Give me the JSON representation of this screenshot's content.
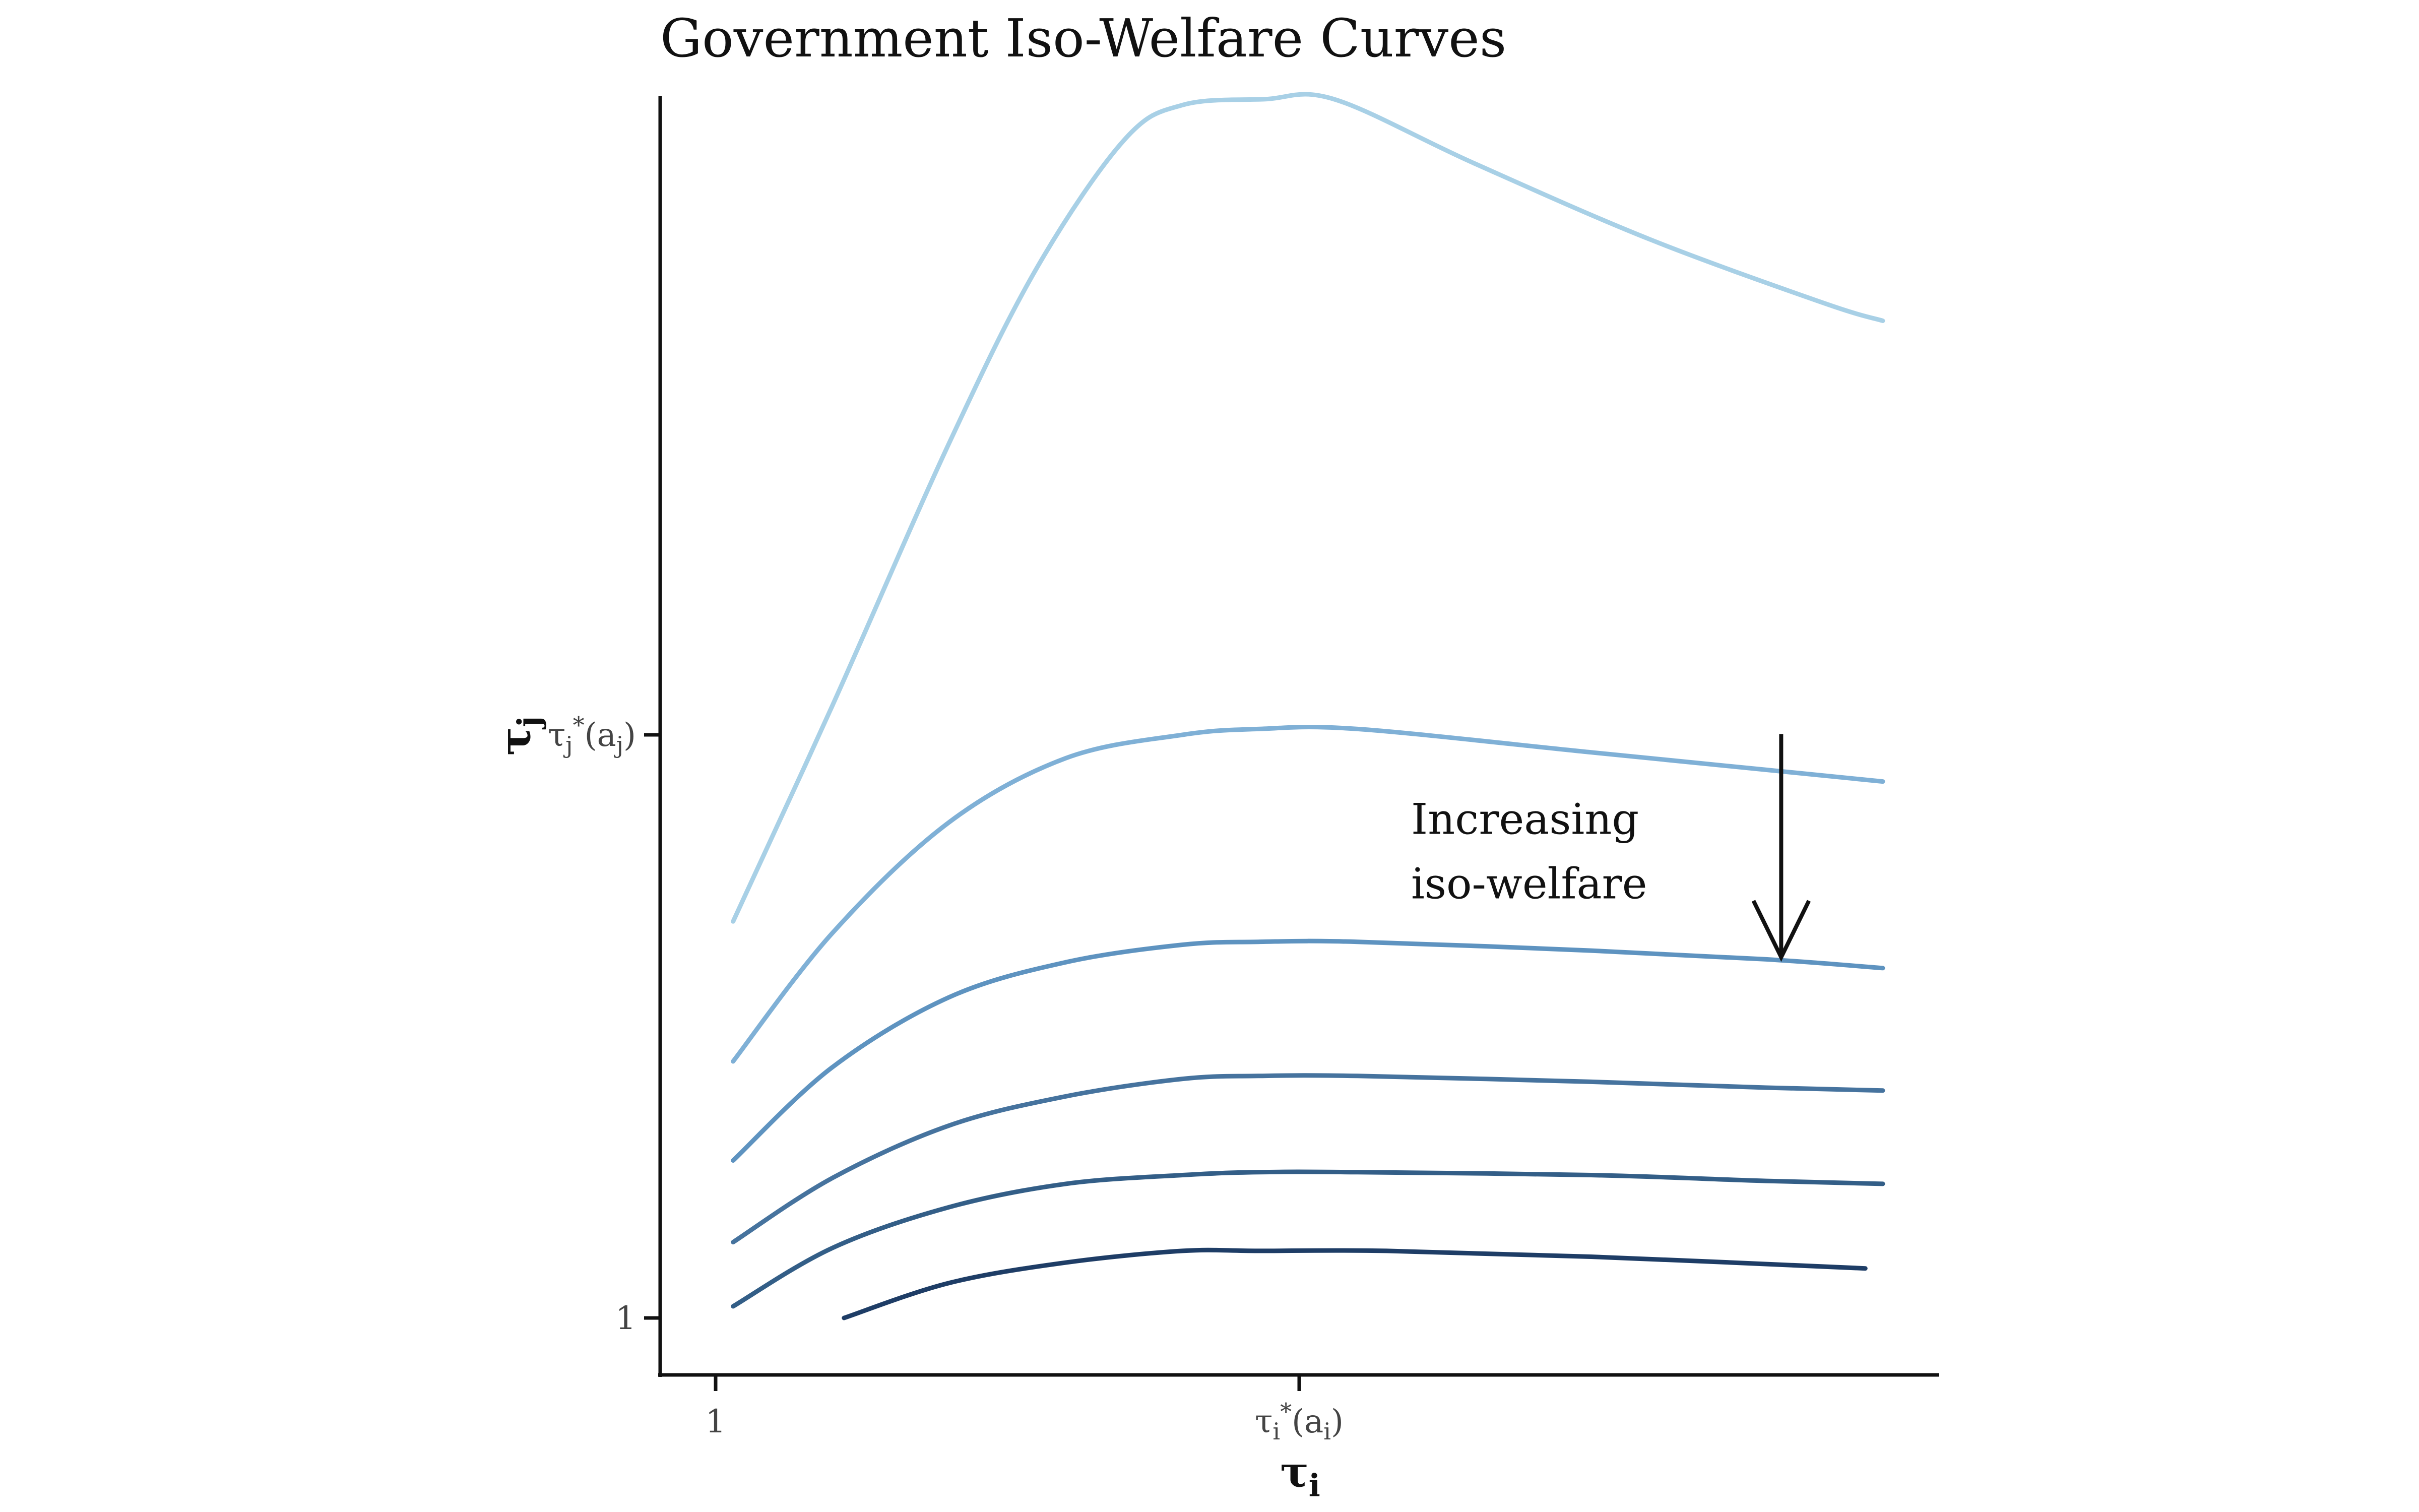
{
  "chart_data": {
    "type": "line",
    "title": "Government Iso-Welfare Curves",
    "xlabel": "τi",
    "ylabel": "τj",
    "xlim": [
      0.9,
      3.1
    ],
    "ylim": [
      0.9,
      3.2
    ],
    "grid": false,
    "legend": "none",
    "x_ticks": [
      {
        "value": 1,
        "label": "1"
      },
      {
        "value": 2,
        "label": "τi*(ai)"
      }
    ],
    "y_ticks": [
      {
        "value": 1,
        "label": "1"
      },
      {
        "value": 2,
        "label": "τj*(aj)"
      }
    ],
    "series": [
      {
        "color": "#a8d0e6",
        "points": [
          [
            1.03,
            1.68
          ],
          [
            1.2,
            2.05
          ],
          [
            1.4,
            2.5
          ],
          [
            1.55,
            2.8
          ],
          [
            1.7,
            3.02
          ],
          [
            1.8,
            3.08
          ],
          [
            1.94,
            3.09
          ],
          [
            2.06,
            3.09
          ],
          [
            2.3,
            2.98
          ],
          [
            2.6,
            2.85
          ],
          [
            2.9,
            2.74
          ],
          [
            3.0,
            2.71
          ]
        ]
      },
      {
        "color": "#7fb0d6",
        "points": [
          [
            1.03,
            1.44
          ],
          [
            1.2,
            1.66
          ],
          [
            1.4,
            1.85
          ],
          [
            1.6,
            1.96
          ],
          [
            1.8,
            2.0
          ],
          [
            1.93,
            2.01
          ],
          [
            2.1,
            2.01
          ],
          [
            2.5,
            1.97
          ],
          [
            2.8,
            1.94
          ],
          [
            3.0,
            1.92
          ]
        ]
      },
      {
        "color": "#5e93c0",
        "points": [
          [
            1.03,
            1.27
          ],
          [
            1.2,
            1.43
          ],
          [
            1.4,
            1.55
          ],
          [
            1.6,
            1.61
          ],
          [
            1.8,
            1.64
          ],
          [
            1.93,
            1.645
          ],
          [
            2.1,
            1.645
          ],
          [
            2.5,
            1.63
          ],
          [
            2.8,
            1.615
          ],
          [
            3.0,
            1.6
          ]
        ]
      },
      {
        "color": "#46739e",
        "points": [
          [
            1.03,
            1.13
          ],
          [
            1.2,
            1.24
          ],
          [
            1.4,
            1.33
          ],
          [
            1.6,
            1.38
          ],
          [
            1.8,
            1.41
          ],
          [
            1.93,
            1.415
          ],
          [
            2.1,
            1.415
          ],
          [
            2.5,
            1.405
          ],
          [
            2.8,
            1.395
          ],
          [
            3.0,
            1.39
          ]
        ]
      },
      {
        "color": "#335e87",
        "points": [
          [
            1.03,
            1.02
          ],
          [
            1.2,
            1.12
          ],
          [
            1.4,
            1.19
          ],
          [
            1.6,
            1.23
          ],
          [
            1.8,
            1.245
          ],
          [
            1.93,
            1.25
          ],
          [
            2.1,
            1.25
          ],
          [
            2.5,
            1.245
          ],
          [
            2.8,
            1.235
          ],
          [
            3.0,
            1.23
          ]
        ]
      },
      {
        "color": "#1e3d66",
        "points": [
          [
            1.22,
            1.0
          ],
          [
            1.4,
            1.06
          ],
          [
            1.6,
            1.095
          ],
          [
            1.8,
            1.115
          ],
          [
            1.93,
            1.115
          ],
          [
            2.15,
            1.115
          ],
          [
            2.5,
            1.105
          ],
          [
            2.97,
            1.085
          ]
        ]
      }
    ],
    "annotations": [
      {
        "text_lines": [
          "Increasing",
          "iso-welfare"
        ],
        "x": 2.7,
        "y": 1.83
      },
      {
        "arrow_from": [
          2.8,
          2.01
        ],
        "arrow_to": [
          2.8,
          1.61
        ],
        "direction": "down"
      }
    ]
  }
}
